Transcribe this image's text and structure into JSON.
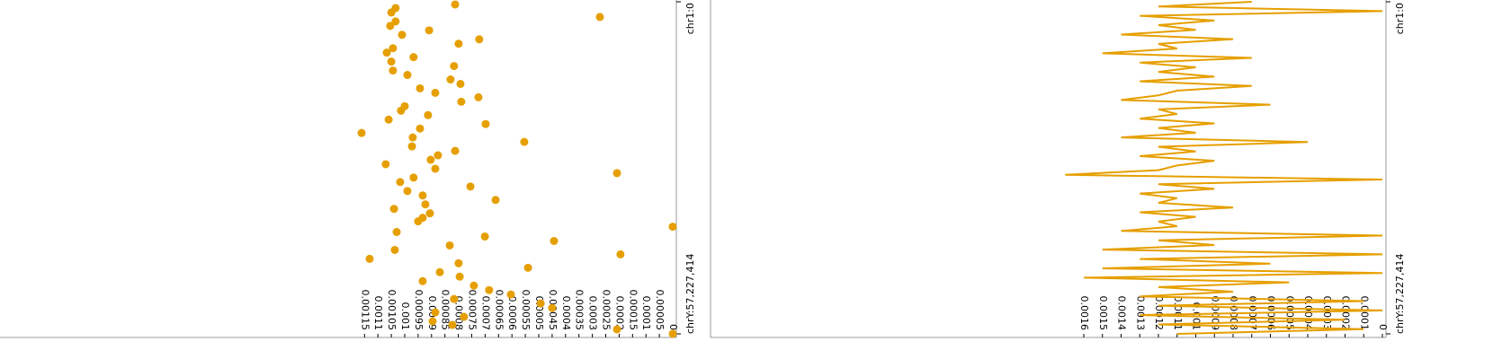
{
  "chart_data": [
    {
      "type": "scatter",
      "color": "#e69f00",
      "x": [
        24900000,
        58100000,
        99600000,
        141100000,
        182600000,
        224100000,
        265600000,
        307100000,
        348600000,
        390100000,
        431600000,
        473100000,
        514600000,
        556100000,
        597600000,
        639100000,
        680600000,
        722100000,
        763600000,
        805100000,
        846600000,
        888100000,
        929600000,
        971100000,
        1012600000,
        1054100000,
        1095600000,
        1137100000,
        1178600000,
        1220100000,
        1261600000,
        1303100000,
        1344600000,
        1386100000,
        1427600000,
        1469100000,
        1510600000,
        1552100000,
        1593600000,
        1635100000,
        1676600000,
        1718100000,
        1759600000,
        1801100000,
        1842600000,
        1884100000,
        1925600000,
        1967100000,
        2008600000,
        2041800000,
        2091600000,
        2141400000,
        2182900000,
        2224400000,
        2265900000,
        2307400000,
        2348900000,
        2390400000,
        2431900000,
        2473400000,
        2514900000,
        2556400000,
        2597900000,
        2639400000,
        2680900000,
        2722400000,
        2763900000,
        2805400000,
        2846900000,
        2888400000,
        2929900000,
        2971400000,
        3004600000,
        3046100000,
        3087600000
      ],
      "values": [
        0.000812,
        0.001034,
        0.00105,
        0.000272,
        0.001034,
        0.001054,
        0.000909,
        0.00101,
        0.000722,
        0.000799,
        0.001044,
        0.001067,
        0.000967,
        0.00105,
        0.000816,
        0.001044,
        0.00099,
        0.000829,
        0.000792,
        0.000943,
        0.000886,
        0.000725,
        0.000789,
        0.001,
        0.001014,
        0.000913,
        0.00106,
        0.000698,
        0.000943,
        0.001161,
        0.00097,
        0.000554,
        0.000973,
        0.000812,
        0.000876,
        0.000903,
        0.001071,
        0.000886,
        0.000208,
        0.000967,
        0.001017,
        0.000755,
        0.00099,
        0.000933,
        0.000661,
        0.000923,
        0.00104,
        0.000906,
        0.000933,
        0.00095,
        0,
        0.00103,
        0.000701,
        0.000443,
        0.000832,
        0.001037,
        0.000195,
        0.001131,
        0.000799,
        0.00054,
        0.000869,
        0.000795,
        0.000933,
        0.000742,
        0.000685,
        0.000604,
        0.000816,
        0.000493,
        0.00045,
        0.000886,
        0.000779,
        0.000896,
        0.000822,
        0.000208,
        0
      ],
      "xlim": [
        0,
        3088269832
      ],
      "xticks": [
        {
          "value": 0,
          "label": "chr1:0"
        },
        {
          "value": 3088269832,
          "label": "chrY:57,227,414"
        }
      ],
      "ylim": [
        0,
        0.00251
      ],
      "yticks": [
        0.00115,
        0.0011,
        0.00105,
        0.001,
        0.00095,
        0.0009,
        0.00085,
        0.0008,
        0.00075,
        0.0007,
        0.00065,
        0.0006,
        0.00055,
        0.0005,
        0.00045,
        0.0004,
        0.00035,
        0.0003,
        0.00025,
        0.0002,
        0.00015,
        0.0001,
        5e-05,
        0
      ]
    },
    {
      "type": "line",
      "color": "#e69f00",
      "x": [
        0,
        43490000,
        86980000,
        130470000,
        173960000,
        217450000,
        260940000,
        304430000,
        347920000,
        391410000,
        434900000,
        478390000,
        521880000,
        565370000,
        608860000,
        652350000,
        695840000,
        739330000,
        782820000,
        826310000,
        869800000,
        913290000,
        956780000,
        1000270000,
        1043760000,
        1087250000,
        1130740000,
        1174230000,
        1217720000,
        1261210000,
        1304700000,
        1348190000,
        1391680000,
        1435170000,
        1478660000,
        1522150000,
        1565640000,
        1609130000,
        1652620000,
        1696110000,
        1739600000,
        1783090000,
        1826580000,
        1870070000,
        1913560000,
        1957050000,
        2000540000,
        2044030000,
        2087520000,
        2131010000,
        2174500000,
        2217990000,
        2261480000,
        2304970000,
        2348460000,
        2391950000,
        2435440000,
        2478930000,
        2522420000,
        2565910000,
        2609400000,
        2652890000,
        2696380000,
        2739870000,
        2783360000,
        2826850000,
        2870340000,
        2913830000,
        2957320000,
        3000810000,
        3044300000,
        3087790000
      ],
      "values": [
        0.0007,
        0.0012,
        0,
        0.0013,
        0.0009,
        0.0012,
        0.001,
        0.0014,
        0.0008,
        0.0012,
        0.0011,
        0.0015,
        0.0007,
        0.0013,
        0.001,
        0.0012,
        0.0009,
        0.0013,
        0.0007,
        0.0011,
        0.0012,
        0.0014,
        0.0006,
        0.0012,
        0.0011,
        0.0013,
        0.0009,
        0.0012,
        0.001,
        0.0014,
        0.0004,
        0.0012,
        0.001,
        0.0013,
        0.0009,
        0.0011,
        0.0012,
        0.0017,
        0,
        0.0012,
        0.0009,
        0.0013,
        0.0011,
        0.0012,
        0.0008,
        0.0013,
        0.001,
        0.0012,
        0.0011,
        0.0014,
        0,
        0.0012,
        0.0009,
        0.0015,
        0,
        0.0013,
        0.0006,
        0.0015,
        0,
        0.0016,
        0.0005,
        0.0012,
        0.0008,
        0.0013,
        0.0001,
        0.0012,
        0,
        0.0013,
        0.0002,
        0.0012,
        0.0001,
        0.0011
      ],
      "xlim": [
        0,
        3088269832
      ],
      "xticks": [
        {
          "value": 0,
          "label": "chr1:0"
        },
        {
          "value": 3088269832,
          "label": "chrY:57,227,414"
        }
      ],
      "ylim": [
        0,
        0.0036
      ],
      "yticks": [
        0.0016,
        0.0015,
        0.0014,
        0.0013,
        0.0012,
        0.0011,
        0.001,
        0.0009,
        0.0008,
        0.0007,
        0.0006,
        0.0005,
        0.0004,
        0.0003,
        0.0002,
        0.0001,
        0
      ]
    }
  ]
}
